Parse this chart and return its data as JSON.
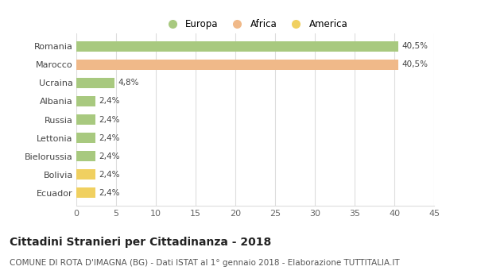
{
  "categories": [
    "Romania",
    "Marocco",
    "Ucraina",
    "Albania",
    "Russia",
    "Lettonia",
    "Bielorussia",
    "Bolivia",
    "Ecuador"
  ],
  "values": [
    40.5,
    40.5,
    4.8,
    2.4,
    2.4,
    2.4,
    2.4,
    2.4,
    2.4
  ],
  "labels": [
    "40,5%",
    "40,5%",
    "4,8%",
    "2,4%",
    "2,4%",
    "2,4%",
    "2,4%",
    "2,4%",
    "2,4%"
  ],
  "colors": [
    "#a8c97f",
    "#f0b989",
    "#a8c97f",
    "#a8c97f",
    "#a8c97f",
    "#a8c97f",
    "#a8c97f",
    "#f0d060",
    "#f0d060"
  ],
  "legend_labels": [
    "Europa",
    "Africa",
    "America"
  ],
  "legend_colors": [
    "#a8c97f",
    "#f0b989",
    "#f0d060"
  ],
  "xlim": [
    0,
    45
  ],
  "xticks": [
    0,
    5,
    10,
    15,
    20,
    25,
    30,
    35,
    40,
    45
  ],
  "title": "Cittadini Stranieri per Cittadinanza - 2018",
  "subtitle": "COMUNE DI ROTA D'IMAGNA (BG) - Dati ISTAT al 1° gennaio 2018 - Elaborazione TUTTITALIA.IT",
  "background_color": "#ffffff",
  "grid_color": "#dddddd",
  "bar_height": 0.55,
  "title_fontsize": 10,
  "subtitle_fontsize": 7.5,
  "label_fontsize": 7.5,
  "ytick_fontsize": 8,
  "xtick_fontsize": 8
}
